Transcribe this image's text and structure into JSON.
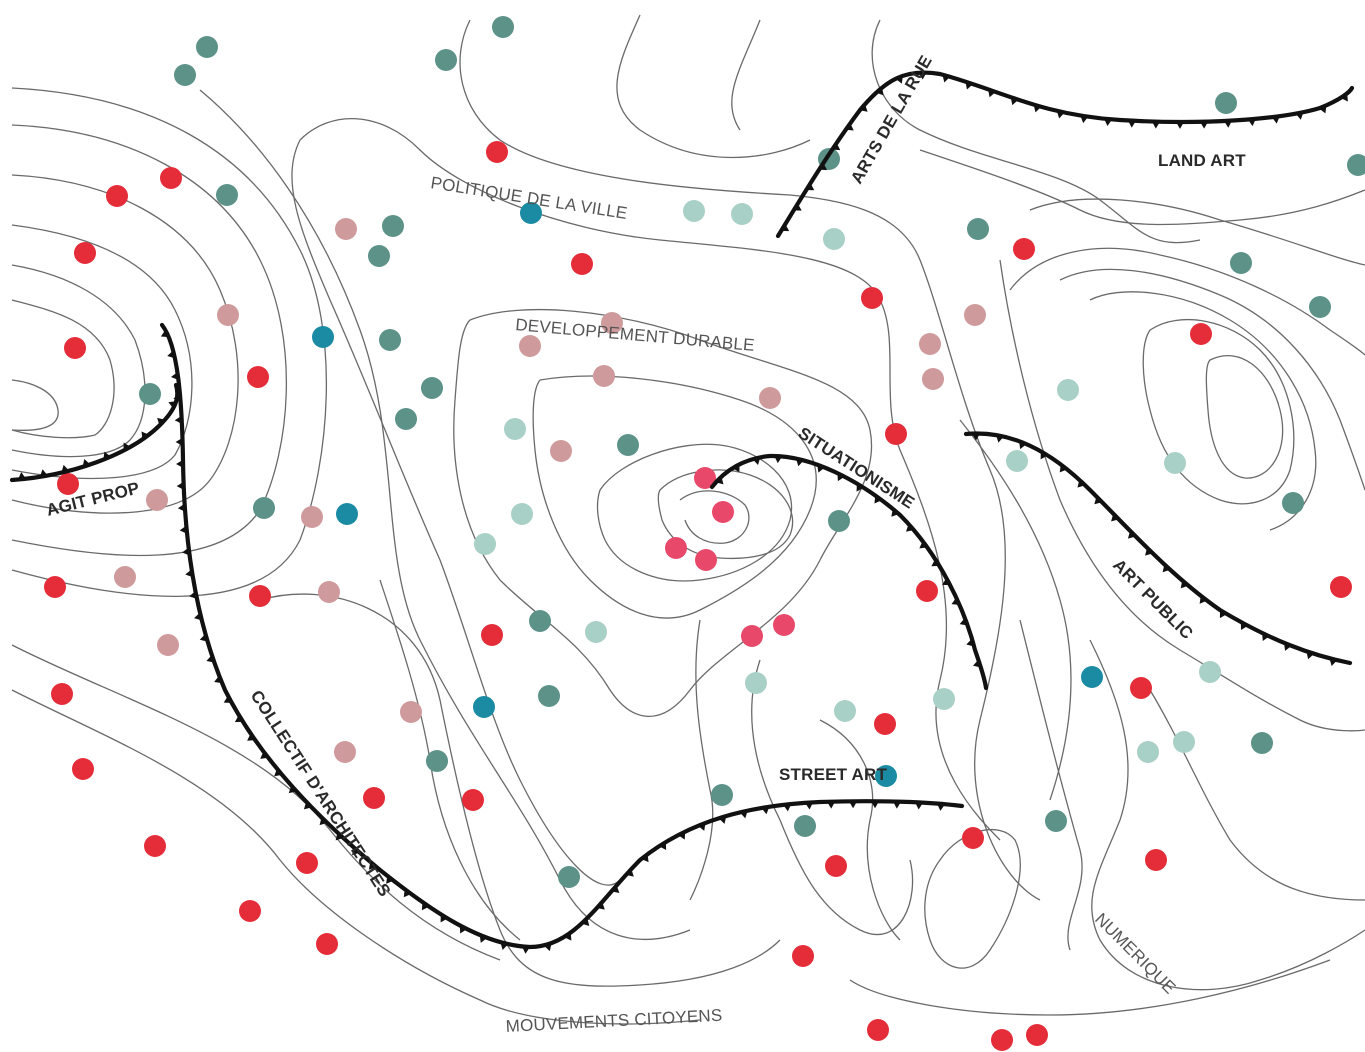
{
  "labels": {
    "fronts": {
      "agit_prop": "AGIT PROP",
      "collectif": "COLLECTIF D'ARCHITECTES",
      "arts_rue": "ARTS DE LA RUE",
      "land_art": "LAND ART",
      "situationnisme": "SITUATIONISME",
      "art_public": "ART PUBLIC",
      "street_art": "STREET ART"
    },
    "contours": {
      "politique": "POLITIQUE DE LA VILLE",
      "developpement": "DEVELOPPEMENT DURABLE",
      "mouvements": "MOUVEMENTS CITOYENS",
      "numerique": "NUMERIQUE"
    }
  },
  "colors": {
    "red": "#e52d3a",
    "pink": "#e8486a",
    "rose": "#cf9a9c",
    "teal_dark": "#5c9288",
    "teal_light": "#a9d0c6",
    "blue_teal": "#1a8ba3",
    "line": "#6a6a6a",
    "front": "#111111"
  }
}
